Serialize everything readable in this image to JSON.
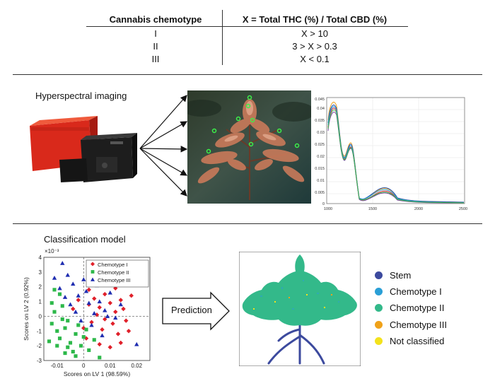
{
  "table": {
    "header_col1": "Cannabis chemotype",
    "header_col2": "X = Total THC (%) / Total CBD (%)",
    "rows": [
      {
        "chemotype": "I",
        "condition": "X > 10"
      },
      {
        "chemotype": "II",
        "condition": "3 > X > 0.3"
      },
      {
        "chemotype": "III",
        "condition": "X < 0.1"
      }
    ]
  },
  "hyperspectral": {
    "title": "Hyperspectral imaging",
    "spectrum_x_ticks": [
      "1000",
      "1500",
      "2000",
      "2500"
    ],
    "spectrum_y_ticks": [
      "0",
      "0.005",
      "0.01",
      "0.015",
      "0.02",
      "0.025",
      "0.03",
      "0.035",
      "0.04",
      "0.045"
    ]
  },
  "classification": {
    "title": "Classification model",
    "prediction_label": "Prediction",
    "exponent_label": "×10⁻³"
  },
  "chart_data": {
    "type": "scatter",
    "xlabel": "Scores on LV 1 (98.59%)",
    "ylabel": "Scores on LV 2 (0.92%)",
    "xlim": [
      -0.015,
      0.025
    ],
    "ylim": [
      -3,
      4
    ],
    "x_ticks": [
      "-0.01",
      "0",
      "0.01",
      "0.02"
    ],
    "y_ticks": [
      "-3",
      "-2",
      "-1",
      "0",
      "1",
      "2",
      "3",
      "4"
    ],
    "series": [
      {
        "name": "Chemotype I",
        "color": "#e0202a",
        "marker": "diamond",
        "points": [
          [
            0.002,
            1.8
          ],
          [
            0.004,
            1.2
          ],
          [
            0.006,
            0.6
          ],
          [
            0.008,
            1.5
          ],
          [
            0.01,
            0.9
          ],
          [
            0.012,
            0.3
          ],
          [
            0.014,
            1.1
          ],
          [
            0.003,
            -0.4
          ],
          [
            0.007,
            -0.9
          ],
          [
            0.011,
            -0.5
          ],
          [
            0.009,
            2.2
          ],
          [
            0.013,
            -1.2
          ],
          [
            0.005,
            0.1
          ],
          [
            0.015,
            0.5
          ],
          [
            0.001,
            -1.5
          ],
          [
            0.016,
            -0.3
          ],
          [
            0.006,
            -1.9
          ],
          [
            0.01,
            -2.1
          ],
          [
            0.018,
            1.4
          ],
          [
            0.004,
            2.6
          ],
          [
            0.012,
            1.9
          ],
          [
            0.008,
            -0.2
          ],
          [
            0.014,
            -1.8
          ],
          [
            0.002,
            0.8
          ],
          [
            0.017,
            -1.0
          ],
          [
            -0.002,
            1.1
          ],
          [
            -0.004,
            0.5
          ],
          [
            0.0,
            -0.8
          ]
        ]
      },
      {
        "name": "Chemotype II",
        "color": "#2db84a",
        "marker": "square",
        "points": [
          [
            -0.012,
            -0.5
          ],
          [
            -0.01,
            -1.0
          ],
          [
            -0.008,
            -0.2
          ],
          [
            -0.011,
            0.3
          ],
          [
            -0.009,
            -1.5
          ],
          [
            -0.007,
            -0.8
          ],
          [
            -0.005,
            -1.8
          ],
          [
            -0.006,
            -0.3
          ],
          [
            -0.003,
            -1.2
          ],
          [
            -0.013,
            -1.7
          ],
          [
            -0.01,
            -2.0
          ],
          [
            -0.004,
            -2.4
          ],
          [
            -0.002,
            -0.6
          ],
          [
            -0.008,
            0.7
          ],
          [
            -0.012,
            0.9
          ],
          [
            -0.006,
            -2.1
          ],
          [
            0.0,
            -1.4
          ],
          [
            -0.009,
            1.5
          ],
          [
            0.002,
            -2.3
          ],
          [
            0.004,
            -1.6
          ],
          [
            -0.003,
            -2.7
          ],
          [
            -0.011,
            1.8
          ],
          [
            0.006,
            -2.8
          ],
          [
            -0.007,
            -2.5
          ],
          [
            0.001,
            -0.9
          ],
          [
            -0.001,
            -2.0
          ]
        ]
      },
      {
        "name": "Chemotype III",
        "color": "#1f2db0",
        "marker": "triangle",
        "points": [
          [
            -0.008,
            3.6
          ],
          [
            -0.006,
            2.8
          ],
          [
            -0.004,
            2.2
          ],
          [
            -0.009,
            1.9
          ],
          [
            -0.002,
            1.4
          ],
          [
            0.0,
            2.5
          ],
          [
            0.002,
            0.9
          ],
          [
            0.004,
            0.2
          ],
          [
            -0.005,
            0.8
          ],
          [
            -0.011,
            2.6
          ],
          [
            0.006,
            1.0
          ],
          [
            0.008,
            0.4
          ],
          [
            0.003,
            -0.6
          ],
          [
            0.001,
            1.7
          ],
          [
            -0.003,
            0.3
          ],
          [
            0.01,
            1.6
          ],
          [
            0.012,
            -0.1
          ],
          [
            0.005,
            2.1
          ],
          [
            0.014,
            0.8
          ],
          [
            -0.007,
            1.3
          ],
          [
            0.02,
            -1.9
          ],
          [
            0.007,
            -1.3
          ],
          [
            0.009,
            0.0
          ],
          [
            -0.001,
            -0.3
          ]
        ]
      }
    ]
  },
  "prediction_legend": [
    {
      "label": "Stem",
      "color": "#3c4a9e"
    },
    {
      "label": "Chemotype I",
      "color": "#2a9fd6"
    },
    {
      "label": "Chemotype II",
      "color": "#33b98a"
    },
    {
      "label": "Chemotype III",
      "color": "#f0a21a"
    },
    {
      "label": "Not classified",
      "color": "#f3e21c"
    }
  ]
}
